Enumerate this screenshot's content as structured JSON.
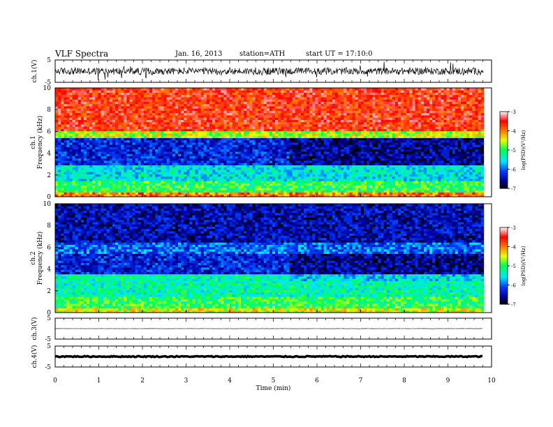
{
  "header": {
    "title": "VLF Spectra",
    "date": "Jan. 16, 2013",
    "station": "station=ATH",
    "start": "start UT =  17:10:0"
  },
  "chart_data": {
    "type": "heatmap",
    "xlabel": "Time (min)",
    "xlim": [
      0,
      10
    ],
    "x_ticks": [
      "0",
      "1",
      "2",
      "3",
      "4",
      "5",
      "6",
      "7",
      "8",
      "9",
      "10"
    ],
    "panels": [
      {
        "id": "ch1-waveform",
        "type": "line",
        "ylabel": "ch.1(V)",
        "ylim": [
          -5,
          5
        ],
        "y_ticks": [
          "5",
          "-5"
        ],
        "trace_color": "#000000",
        "trace_level": 0,
        "trace_amplitude": "large noisy fluctuations, about ±1.5 V"
      },
      {
        "id": "ch1-spectrogram",
        "type": "heatmap",
        "ylabel_lines": [
          "ch.1",
          "Frequency (kHz)"
        ],
        "ylim": [
          0,
          10
        ],
        "y_ticks": [
          "0",
          "2",
          "4",
          "6",
          "8",
          "10"
        ],
        "data_end_min": 9.82,
        "colorbar": {
          "label": "log(PSD)(V²/Hz)",
          "range": [
            -7,
            -3
          ],
          "ticks": [
            "-3",
            "-4",
            "-5",
            "-6",
            "-7"
          ],
          "colormap": [
            "#ffffff",
            "#ff0000",
            "#ffff00",
            "#00ff00",
            "#00ffff",
            "#0000ff",
            "#000000"
          ]
        },
        "bands_khz_logpsd": [
          {
            "f": [
              6.0,
              10.0
            ],
            "logpsd": -3.6
          },
          {
            "f": [
              5.5,
              6.0
            ],
            "logpsd": -4.6
          },
          {
            "f": [
              3.0,
              5.5
            ],
            "logpsd": -6.3
          },
          {
            "f": [
              1.5,
              3.0
            ],
            "logpsd": -5.5
          },
          {
            "f": [
              0.5,
              1.5
            ],
            "logpsd": -5.0
          },
          {
            "f": [
              0.0,
              0.5
            ],
            "logpsd": -4.0
          }
        ]
      },
      {
        "id": "ch2-spectrogram",
        "type": "heatmap",
        "ylabel_lines": [
          "ch.2",
          "Frequency (kHz)"
        ],
        "ylim": [
          0,
          10
        ],
        "y_ticks": [
          "0",
          "2",
          "4",
          "6",
          "8",
          "10"
        ],
        "data_end_min": 9.82,
        "colorbar": {
          "label": "log(PSD)(V²/Hz)",
          "range": [
            -7,
            -3
          ],
          "ticks": [
            "-3",
            "-4",
            "-5",
            "-6",
            "-7"
          ],
          "colormap": [
            "#ffffff",
            "#ff0000",
            "#ffff00",
            "#00ff00",
            "#00ffff",
            "#0000ff",
            "#000000"
          ]
        },
        "bands_khz_logpsd": [
          {
            "f": [
              6.5,
              10.0
            ],
            "logpsd": -6.5
          },
          {
            "f": [
              5.5,
              6.5
            ],
            "logpsd": -6.0
          },
          {
            "f": [
              3.5,
              5.5
            ],
            "logpsd": -6.3
          },
          {
            "f": [
              1.5,
              3.5
            ],
            "logpsd": -5.3
          },
          {
            "f": [
              0.5,
              1.5
            ],
            "logpsd": -5.0
          },
          {
            "f": [
              0.0,
              0.5
            ],
            "logpsd": -4.5
          }
        ]
      },
      {
        "id": "ch3-waveform",
        "type": "line",
        "ylabel": "ch.3(V)",
        "ylim": [
          -5,
          5
        ],
        "y_ticks": [
          "5",
          "-5"
        ],
        "trace_color": "#000000",
        "trace_level": 0,
        "trace_amplitude": "flat, near 0 V"
      },
      {
        "id": "ch4-waveform",
        "type": "line",
        "ylabel": "ch.4(V)",
        "ylim": [
          -5,
          5
        ],
        "y_ticks": [
          "5",
          "-5"
        ],
        "trace_color": "#000000",
        "trace_level": 0,
        "trace_amplitude": "thick band near 0 V"
      }
    ]
  }
}
